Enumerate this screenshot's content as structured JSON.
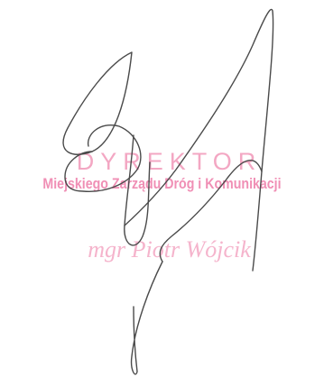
{
  "stamp": {
    "title": "DYREKTOR",
    "institution": "Miejskiego Zarządu Dróg i Komunikacji",
    "person": "mgr Piotr Wójcik",
    "color": "#f08fb5"
  },
  "signature": {
    "color": "#4a4a4a"
  }
}
